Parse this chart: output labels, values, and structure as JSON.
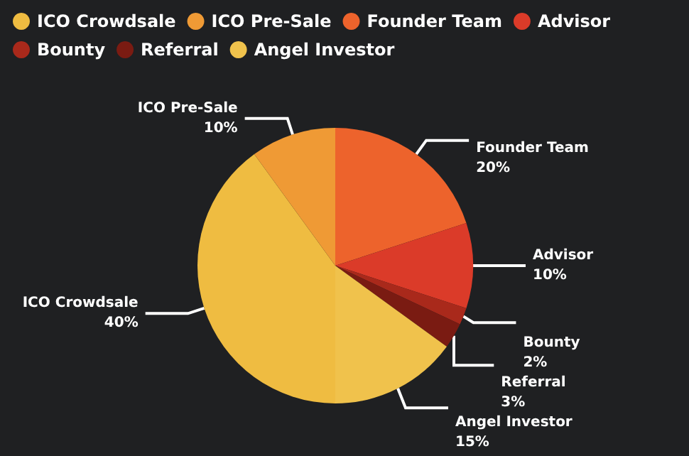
{
  "chart_data": {
    "type": "pie",
    "categories": [
      "ICO Crowdsale",
      "ICO Pre-Sale",
      "Founder Team",
      "Advisor",
      "Bounty",
      "Referral",
      "Angel Investor"
    ],
    "values": [
      40,
      10,
      20,
      10,
      2,
      3,
      15
    ],
    "value_labels": [
      "40%",
      "10%",
      "20%",
      "10%",
      "2%",
      "3%",
      "15%"
    ],
    "colors": [
      "#efbc41",
      "#ef9a35",
      "#ed632c",
      "#db3b29",
      "#a9291b",
      "#7a1b12",
      "#f0c24c"
    ],
    "legend": "top left"
  }
}
